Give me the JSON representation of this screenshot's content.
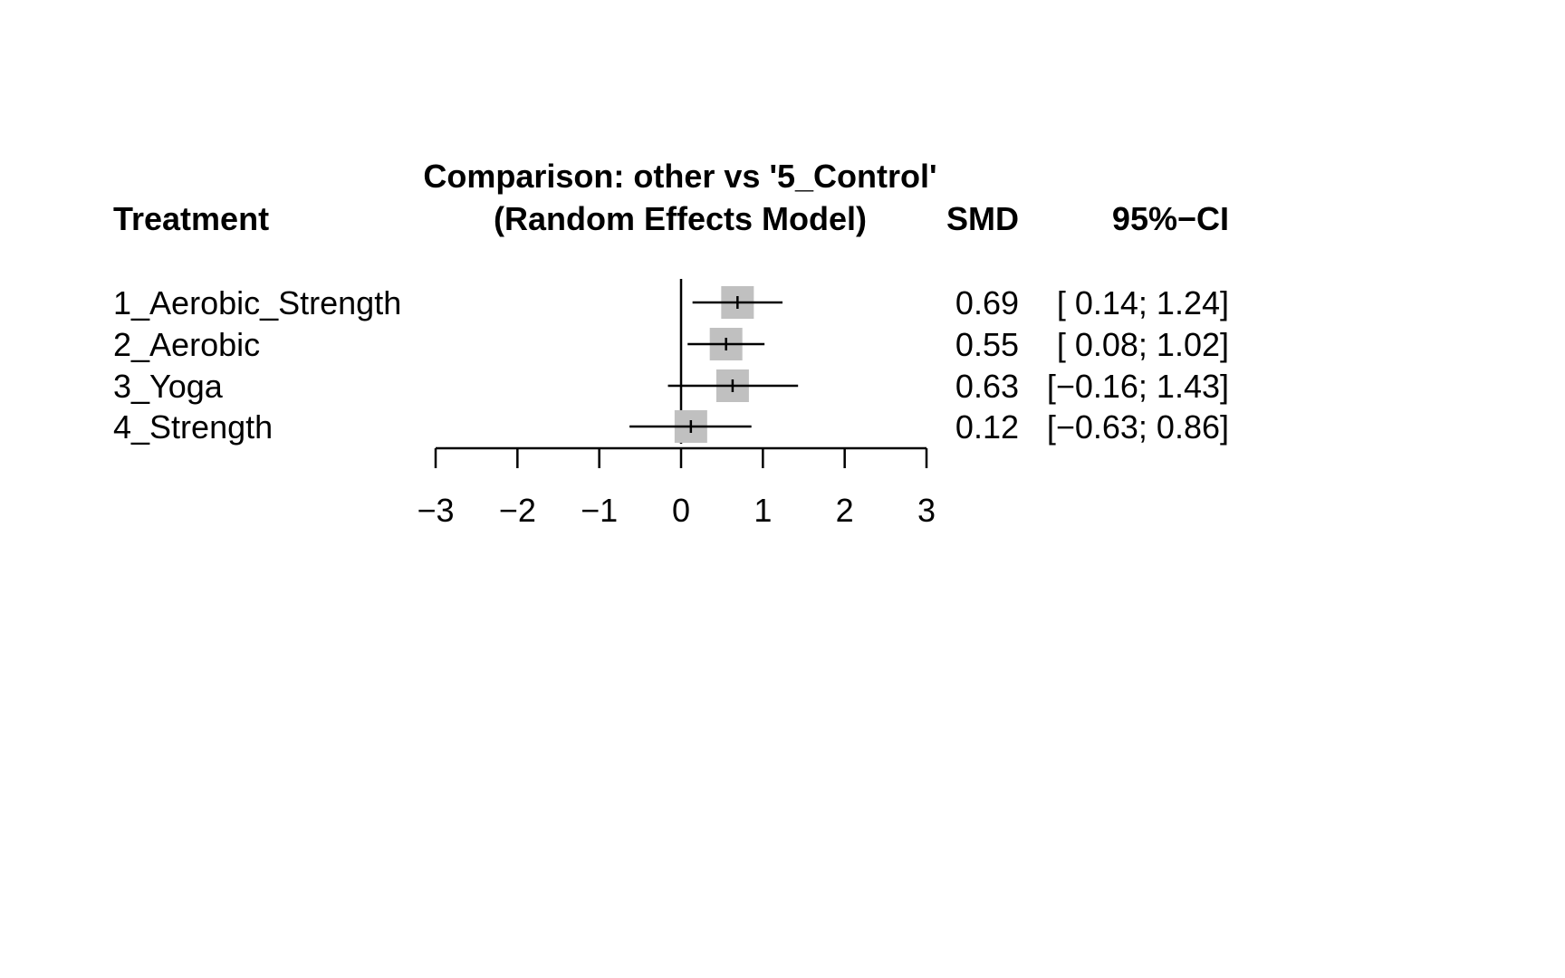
{
  "header": {
    "treatment_label": "Treatment",
    "comparison_title": "Comparison: other vs '5_Control'",
    "model_label": "(Random Effects Model)",
    "smd_label": "SMD",
    "ci_label": "95%−CI"
  },
  "chart_data": {
    "type": "forest",
    "xlim": [
      -3,
      3
    ],
    "ticks": [
      -3,
      -2,
      -1,
      0,
      1,
      2,
      3
    ],
    "tick_labels": [
      "−3",
      "−2",
      "−1",
      "0",
      "1",
      "2",
      "3"
    ],
    "reference_line": 0,
    "box_color": "#c0c0c0",
    "rows": [
      {
        "treatment": "1_Aerobic_Strength",
        "smd": 0.69,
        "lower": 0.14,
        "upper": 1.24,
        "smd_text": "0.69",
        "ci_text": "[ 0.14; 1.24]"
      },
      {
        "treatment": "2_Aerobic",
        "smd": 0.55,
        "lower": 0.08,
        "upper": 1.02,
        "smd_text": "0.55",
        "ci_text": "[ 0.08; 1.02]"
      },
      {
        "treatment": "3_Yoga",
        "smd": 0.63,
        "lower": -0.16,
        "upper": 1.43,
        "smd_text": "0.63",
        "ci_text": "[−0.16; 1.43]"
      },
      {
        "treatment": "4_Strength",
        "smd": 0.12,
        "lower": -0.63,
        "upper": 0.86,
        "smd_text": "0.12",
        "ci_text": "[−0.63; 0.86]"
      }
    ]
  }
}
